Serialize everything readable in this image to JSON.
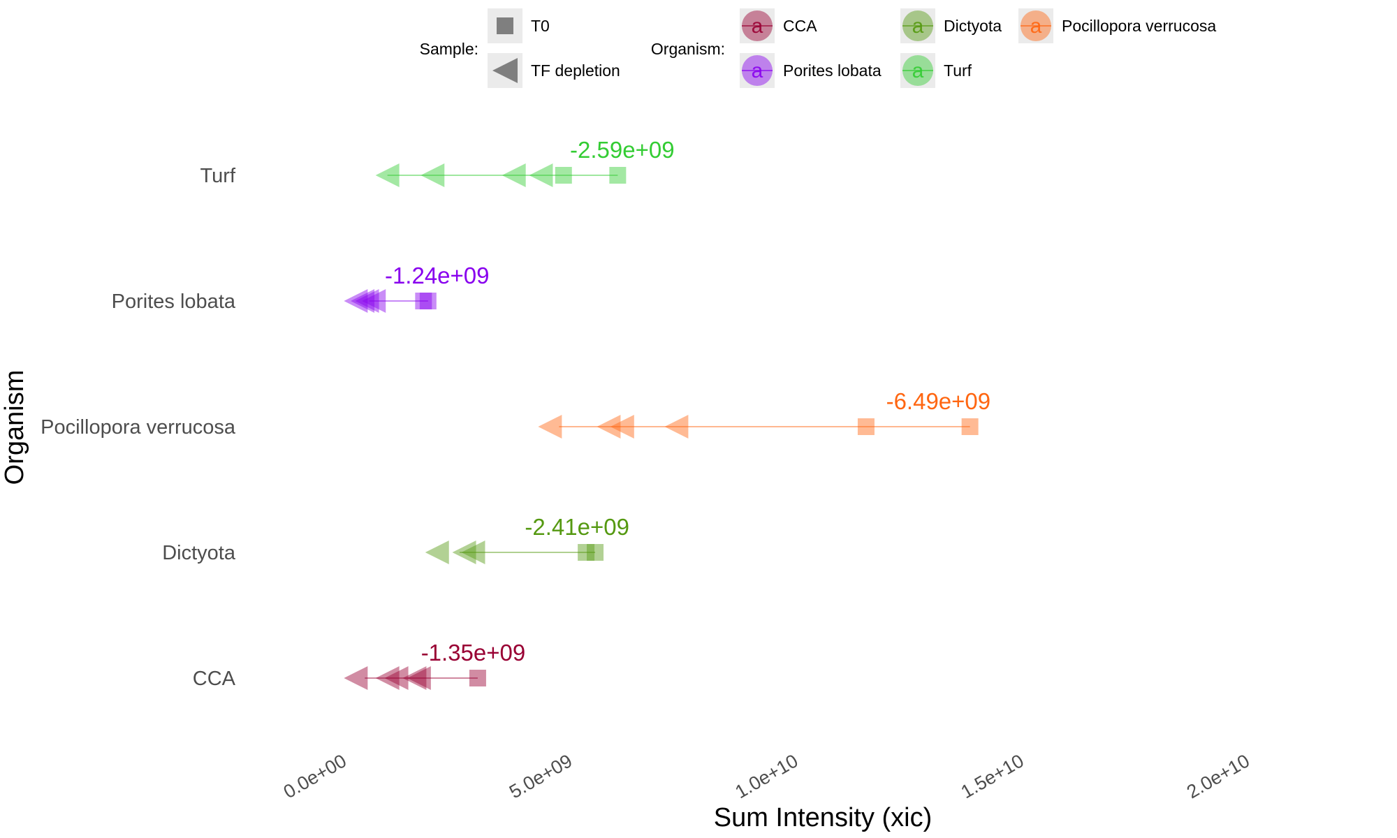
{
  "chart_data": {
    "type": "scatter",
    "xlabel": "Sum Intensity (xic)",
    "ylabel": "Organism",
    "xlim": [
      -1500000000,
      21500000000
    ],
    "x_ticks": [
      0,
      5000000000,
      10000000000,
      15000000000,
      20000000000
    ],
    "x_tick_labels": [
      "0.0e+00",
      "5.0e+09",
      "1.0e+10",
      "1.5e+10",
      "2.0e+10"
    ],
    "categories": [
      "CCA",
      "Dictyota",
      "Pocillopora verrucosa",
      "Porites lobata",
      "Turf"
    ],
    "grid": false,
    "legend_position": "top",
    "legend": {
      "sample_title": "Sample:",
      "sample_items": [
        {
          "label": "T0",
          "shape": "square"
        },
        {
          "label": "TF depletion",
          "shape": "triangle-left"
        }
      ],
      "organism_title": "Organism:",
      "organism_items": [
        {
          "label": "CCA",
          "color": "#990033"
        },
        {
          "label": "Porites lobata",
          "color": "#8800ee"
        },
        {
          "label": "Dictyota",
          "color": "#559911"
        },
        {
          "label": "Turf",
          "color": "#33cc33"
        },
        {
          "label": "Pocillopora verrucosa",
          "color": "#ff6611"
        }
      ]
    },
    "series": [
      {
        "name": "CCA",
        "color": "#990033",
        "t0": [
          3000000000
        ],
        "tf": [
          300000000,
          1000000000,
          1200000000,
          1600000000,
          1700000000
        ],
        "line": [
          500000000,
          3000000000
        ],
        "diff_label": "-1.35e+09",
        "diff_x": 2900000000
      },
      {
        "name": "Dictyota",
        "color": "#559911",
        "t0": [
          5400000000,
          5600000000
        ],
        "tf": [
          2100000000,
          2700000000,
          2900000000
        ],
        "line": [
          2600000000,
          5600000000
        ],
        "diff_label": "-2.41e+09",
        "diff_x": 5200000000
      },
      {
        "name": "Pocillopora verrucosa",
        "color": "#ff6611",
        "t0": [
          11600000000,
          13900000000
        ],
        "tf": [
          4600000000,
          5900000000,
          6200000000,
          7400000000
        ],
        "line": [
          4800000000,
          13900000000
        ],
        "diff_label": "-6.49e+09",
        "diff_x": 13200000000
      },
      {
        "name": "Porites lobata",
        "color": "#8800ee",
        "t0": [
          1800000000,
          1900000000
        ],
        "tf": [
          300000000,
          450000000,
          550000000,
          700000000
        ],
        "line": [
          600000000,
          1900000000
        ],
        "diff_label": "-1.24e+09",
        "diff_x": 2100000000
      },
      {
        "name": "Turf",
        "color": "#33cc33",
        "t0": [
          4900000000,
          6100000000
        ],
        "tf": [
          1000000000,
          2000000000,
          3800000000,
          4400000000
        ],
        "line": [
          1000000000,
          6100000000
        ],
        "diff_label": "-2.59e+09",
        "diff_x": 6200000000
      }
    ]
  }
}
